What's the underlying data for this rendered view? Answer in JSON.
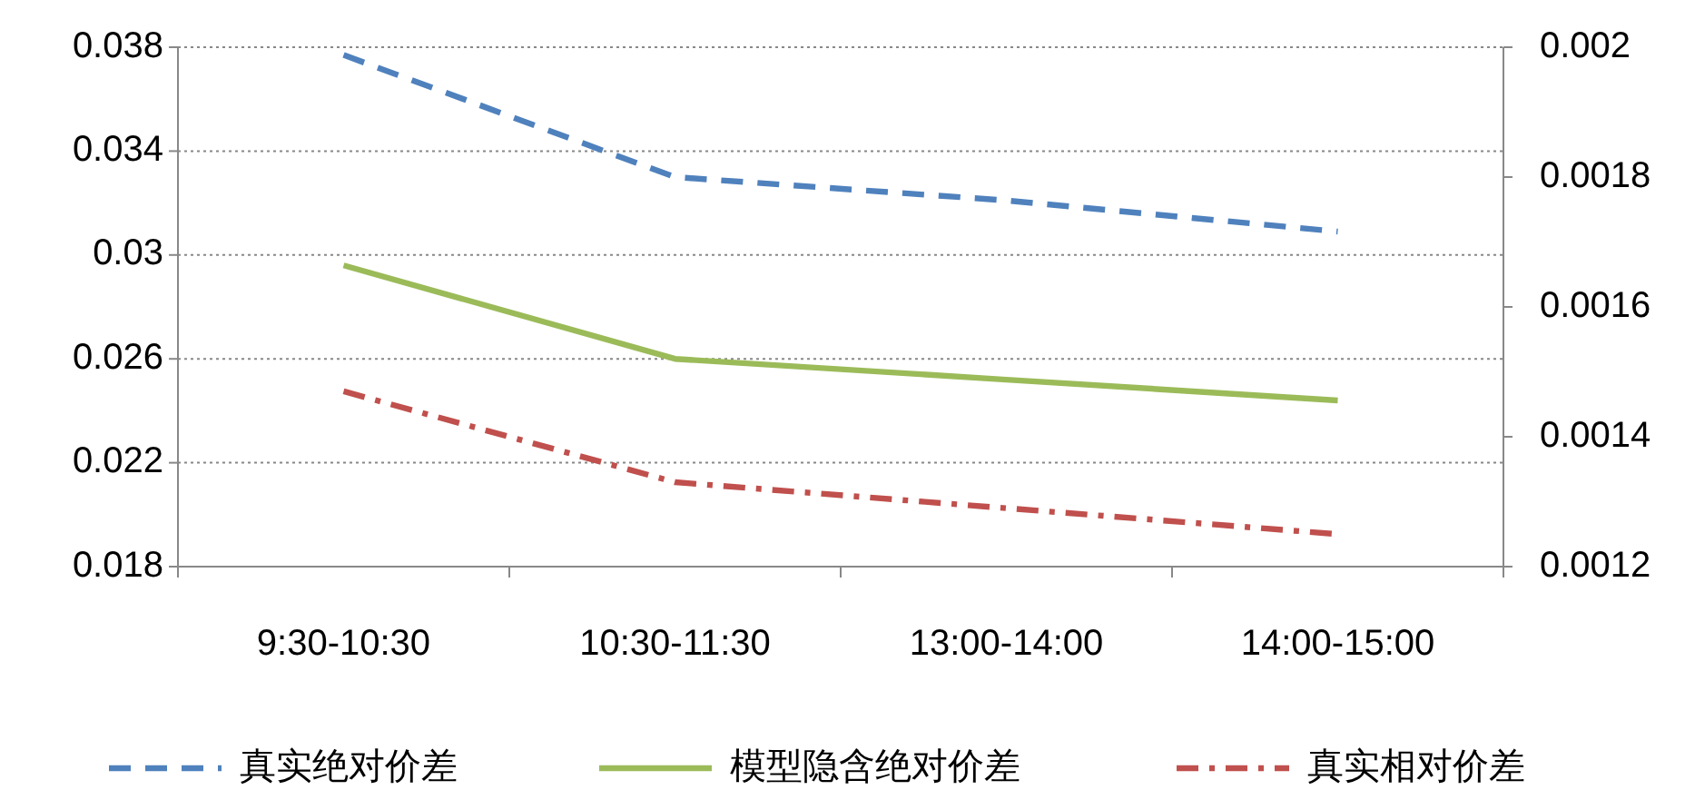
{
  "chart_data": {
    "type": "line",
    "categories": [
      "9:30-10:30",
      "10:30-11:30",
      "13:00-14:00",
      "14:00-15:00"
    ],
    "series": [
      {
        "name": "真实绝对价差",
        "color": "#4f81bd",
        "values": [
          0.0377,
          0.033,
          0.0321,
          0.0309
        ],
        "line_style": "dashed"
      },
      {
        "name": "模型隐含绝对价差",
        "color": "#9bbb59",
        "values": [
          0.0296,
          0.026,
          0.0252,
          0.0244
        ],
        "line_style": "solid"
      },
      {
        "name": "真实相对价差",
        "color": "#c0504d",
        "values": [
          0.00147,
          0.00133,
          0.00129,
          0.00125
        ],
        "line_style": "dashdot",
        "axis": "y2"
      }
    ],
    "ylim": [
      0.018,
      0.038
    ],
    "yticks": [
      0.018,
      0.022,
      0.026,
      0.03,
      0.034,
      0.038
    ],
    "y2lim": [
      0.0012,
      0.002
    ],
    "y2ticks": [
      0.0012,
      0.0014,
      0.0016,
      0.0018,
      0.002
    ],
    "grid": "y",
    "legend": "bottom"
  }
}
